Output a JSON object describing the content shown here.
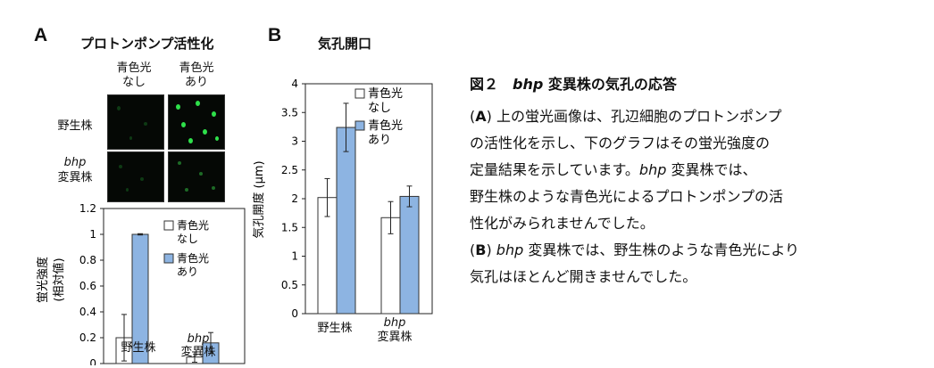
{
  "panel_a": {
    "letter": "A",
    "title": "プロトンポンプ活性化",
    "col_labels": [
      {
        "line1": "青色光",
        "line2": "なし"
      },
      {
        "line1": "青色光",
        "line2": "あり"
      }
    ],
    "row_labels": {
      "wild": "野生株",
      "mutant_gene": "bhp",
      "mutant_suffix": "変異株"
    }
  },
  "panel_b": {
    "letter": "B",
    "title": "気孔開口"
  },
  "chart_data": [
    {
      "type": "bar",
      "panel": "A",
      "ylabel_line1": "蛍光強度",
      "ylabel_line2": "(相対値)",
      "ylim": [
        0,
        1.2
      ],
      "yticks": [
        "0",
        "0.2",
        "0.4",
        "0.6",
        "0.8",
        "1",
        "1.2"
      ],
      "categories": [
        {
          "line1": "野生株",
          "line2": ""
        },
        {
          "line1": "bhp",
          "line2": "変異株"
        }
      ],
      "series": [
        {
          "name": "青色光\nなし",
          "legend1": "青色光",
          "legend2": "なし",
          "color": "#ffffff",
          "values": [
            0.2,
            0.05
          ],
          "errors": [
            0.18,
            0.04
          ]
        },
        {
          "name": "青色光\nあり",
          "legend1": "青色光",
          "legend2": "あり",
          "color": "#8db4e2",
          "values": [
            1.0,
            0.16
          ],
          "errors": [
            0.005,
            0.08
          ]
        }
      ],
      "legend_position": "right"
    },
    {
      "type": "bar",
      "panel": "B",
      "ylabel": "気孔開度 (μm)",
      "ylim": [
        0,
        4
      ],
      "yticks": [
        "0",
        "0.5",
        "1",
        "1.5",
        "2",
        "2.5",
        "3",
        "3.5",
        "4"
      ],
      "categories": [
        {
          "line1": "野生株",
          "line2": ""
        },
        {
          "line1": "bhp",
          "line2": "変異株"
        }
      ],
      "series": [
        {
          "name": "青色光\nなし",
          "legend1": "青色光",
          "legend2": "なし",
          "color": "#ffffff",
          "values": [
            2.02,
            1.67
          ],
          "errors": [
            0.33,
            0.28
          ]
        },
        {
          "name": "青色光\nあり",
          "legend1": "青色光",
          "legend2": "あり",
          "color": "#8db4e2",
          "values": [
            3.24,
            2.04
          ],
          "errors": [
            0.42,
            0.18
          ]
        }
      ],
      "legend_position": "top-right"
    }
  ],
  "caption": {
    "title_prefix": "図２　",
    "title_gene": "bhp",
    "title_rest": " 変異株の気孔の応答",
    "line1_open": "(",
    "line1_letter": "A",
    "line1_text": ") 上の蛍光画像は、孔辺細胞のプロトンポンプ",
    "line2": "の活性化を示し、下のグラフはその蛍光強度の",
    "line3_pre": "定量結果を示しています。",
    "line3_gene": "bhp",
    "line3_post": " 変異株では、",
    "line4": "野生株のような青色光によるプロトンポンプの活",
    "line5": "性化がみられませんでした。",
    "line6_open": "(",
    "line6_letter": "B",
    "line6_close": ") ",
    "line6_gene": "bhp",
    "line6_post": " 変異株では、野生株のような青色光により",
    "line7": "気孔はほとんど開きませんでした。"
  }
}
